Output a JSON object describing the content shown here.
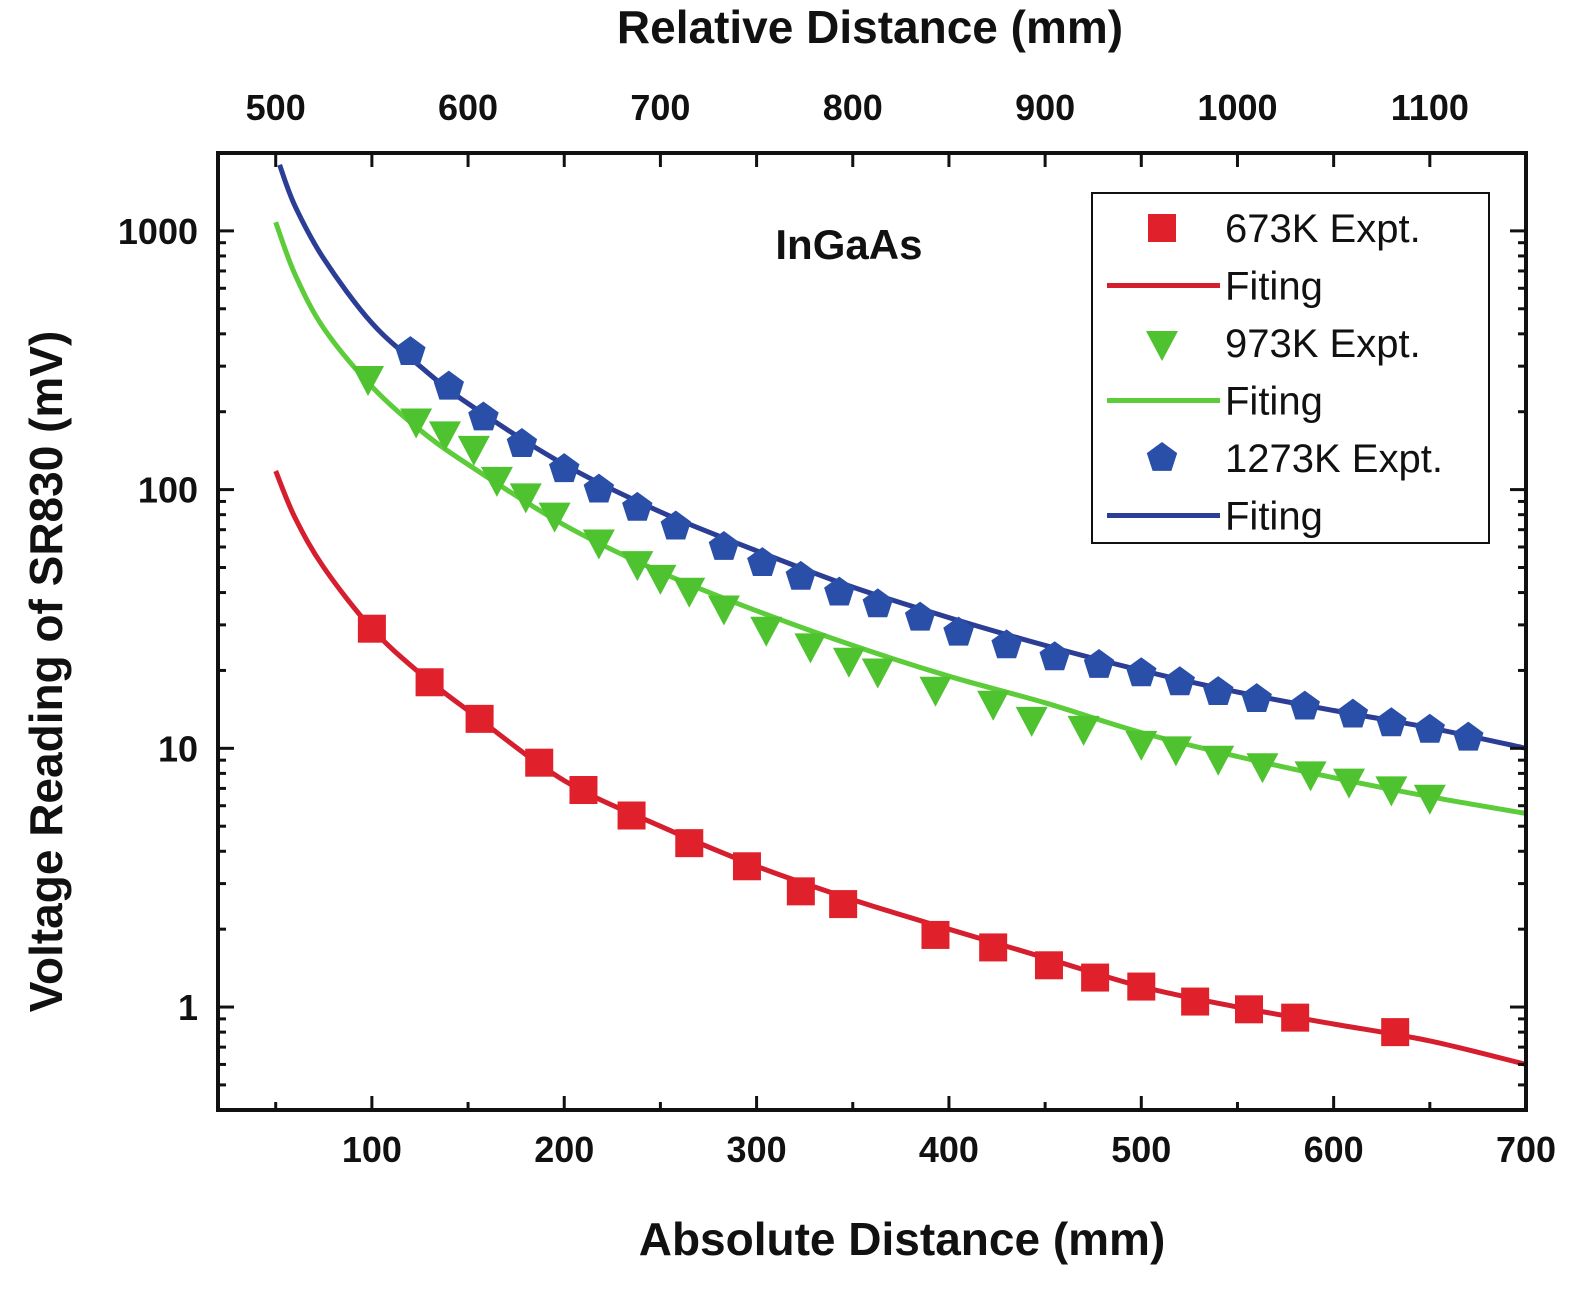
{
  "chart_data": {
    "type": "scatter",
    "title": "",
    "xlabel": "Absolute Distance (mm)",
    "x2label": "Relative Distance (mm)",
    "ylabel": "Voltage Reading of SR830 (mV)",
    "xlim": [
      20,
      700
    ],
    "x2lim": [
      470,
      1150
    ],
    "ylim": [
      0.4,
      2000
    ],
    "yscale": "log",
    "xticks": [
      100,
      200,
      300,
      400,
      500,
      600,
      700
    ],
    "x2ticks": [
      500,
      600,
      700,
      800,
      900,
      1000,
      1100
    ],
    "yticks": [
      1,
      10,
      100,
      1000
    ],
    "ytick_labels": [
      "1",
      "10",
      "100",
      "1000"
    ],
    "annotation": "InGaAs",
    "legend_position": "top-right",
    "colors": {
      "red": "#e0202a",
      "green": "#4fc230",
      "blue": "#2a4fa8",
      "red_line": "#d51e2e",
      "green_line": "#5ccc3a",
      "blue_line": "#2b3d94"
    },
    "series": [
      {
        "name": "673K Expt.",
        "kind": "points",
        "marker": "square",
        "color": "#e0202a",
        "x": [
          100,
          130,
          156,
          187,
          210,
          235,
          265,
          295,
          323,
          345,
          393,
          423,
          452,
          476,
          500,
          528,
          556,
          580,
          632
        ],
        "y": [
          29,
          18,
          13,
          8.8,
          6.9,
          5.5,
          4.3,
          3.5,
          2.8,
          2.5,
          1.9,
          1.7,
          1.45,
          1.3,
          1.2,
          1.05,
          0.98,
          0.91,
          0.8
        ]
      },
      {
        "name": "Fiting",
        "kind": "line",
        "color": "#d51e2e",
        "x": [
          50,
          60,
          75,
          100,
          125,
          150,
          200,
          250,
          300,
          350,
          400,
          450,
          500,
          550,
          600,
          650,
          700
        ],
        "y": [
          118,
          78,
          50,
          29,
          19.5,
          14,
          7.5,
          5.0,
          3.5,
          2.6,
          2.0,
          1.55,
          1.2,
          1.0,
          0.86,
          0.74,
          0.6
        ]
      },
      {
        "name": "973K Expt.",
        "kind": "points",
        "marker": "triangle-down",
        "color": "#4fc230",
        "x": [
          98,
          123,
          138,
          153,
          165,
          180,
          195,
          218,
          238,
          250,
          265,
          283,
          305,
          328,
          348,
          363,
          393,
          423,
          443,
          470,
          500,
          518,
          540,
          563,
          588,
          608,
          630,
          650
        ],
        "y": [
          270,
          185,
          165,
          145,
          110,
          95,
          80,
          63,
          52,
          46,
          41,
          35,
          29,
          25,
          22,
          20,
          17,
          15,
          13,
          12,
          10.5,
          10,
          9.2,
          8.6,
          8,
          7.5,
          7,
          6.5
        ],
        "legend_name": "973K Expt."
      },
      {
        "name": "Fiting",
        "kind": "line",
        "color": "#5ccc3a",
        "x": [
          50,
          60,
          75,
          100,
          125,
          150,
          200,
          250,
          300,
          350,
          400,
          450,
          500,
          550,
          600,
          650,
          700
        ],
        "y": [
          1080,
          680,
          420,
          250,
          170,
          125,
          73,
          48,
          34,
          25,
          19,
          15,
          11.5,
          9.3,
          7.7,
          6.5,
          5.6
        ]
      },
      {
        "name": "1273K Expt.",
        "kind": "points",
        "marker": "pentagon",
        "color": "#2a4fa8",
        "x": [
          120,
          140,
          158,
          178,
          200,
          218,
          238,
          258,
          283,
          303,
          323,
          343,
          363,
          385,
          405,
          430,
          455,
          478,
          500,
          520,
          540,
          560,
          585,
          610,
          630,
          650,
          670
        ],
        "y": [
          340,
          250,
          190,
          150,
          120,
          100,
          85,
          72,
          60,
          52,
          46,
          40,
          36,
          32,
          28,
          25,
          22.5,
          21,
          19.5,
          18,
          16.5,
          15.5,
          14.5,
          13.5,
          12.5,
          11.8,
          11
        ],
        "legend_name": "1273K Expt."
      },
      {
        "name": "Fiting",
        "kind": "line",
        "color": "#2b3d94",
        "x": [
          52,
          60,
          75,
          100,
          125,
          150,
          200,
          250,
          300,
          350,
          400,
          450,
          500,
          550,
          600,
          650,
          700
        ],
        "y": [
          1800,
          1250,
          780,
          440,
          300,
          215,
          125,
          82,
          58,
          42,
          32,
          25,
          20,
          16.5,
          14,
          12,
          10
        ]
      }
    ]
  }
}
